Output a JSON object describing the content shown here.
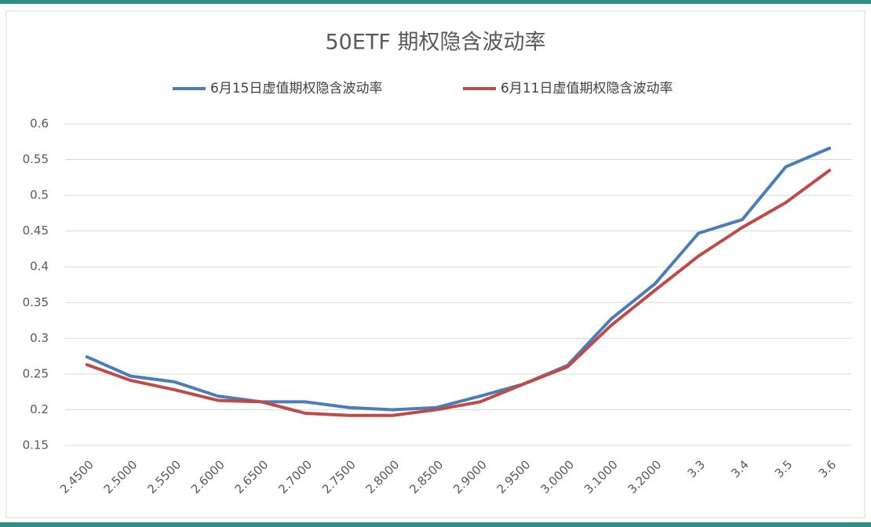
{
  "chart_data": {
    "type": "line",
    "title": "50ETF 期权隐含波动率",
    "categories": [
      "2.4500",
      "2.5000",
      "2.5500",
      "2.6000",
      "2.6500",
      "2.7000",
      "2.7500",
      "2.8000",
      "2.8500",
      "2.9000",
      "2.9500",
      "3.0000",
      "3.1000",
      "3.2000",
      "3.3",
      "3.4",
      "3.5",
      "3.6"
    ],
    "series": [
      {
        "name": "6月15日虚值期权隐含波动率",
        "color": "#4a7ebb",
        "values": [
          0.274,
          0.247,
          0.239,
          0.219,
          0.211,
          0.211,
          0.203,
          0.2,
          0.203,
          0.219,
          0.236,
          0.262,
          0.327,
          0.376,
          0.447,
          0.466,
          0.54,
          0.566
        ]
      },
      {
        "name": "6月11日虚值期权隐含波动率",
        "color": "#be4b48",
        "values": [
          0.263,
          0.241,
          0.228,
          0.213,
          0.211,
          0.195,
          0.192,
          0.192,
          0.2,
          0.211,
          0.236,
          0.26,
          0.318,
          0.367,
          0.415,
          0.455,
          0.49,
          0.535
        ]
      }
    ],
    "ylim": [
      0.15,
      0.6
    ],
    "yticks": [
      0.15,
      0.2,
      0.25,
      0.3,
      0.35,
      0.4,
      0.45,
      0.5,
      0.55,
      0.6
    ],
    "grid": true,
    "legend": "top"
  }
}
